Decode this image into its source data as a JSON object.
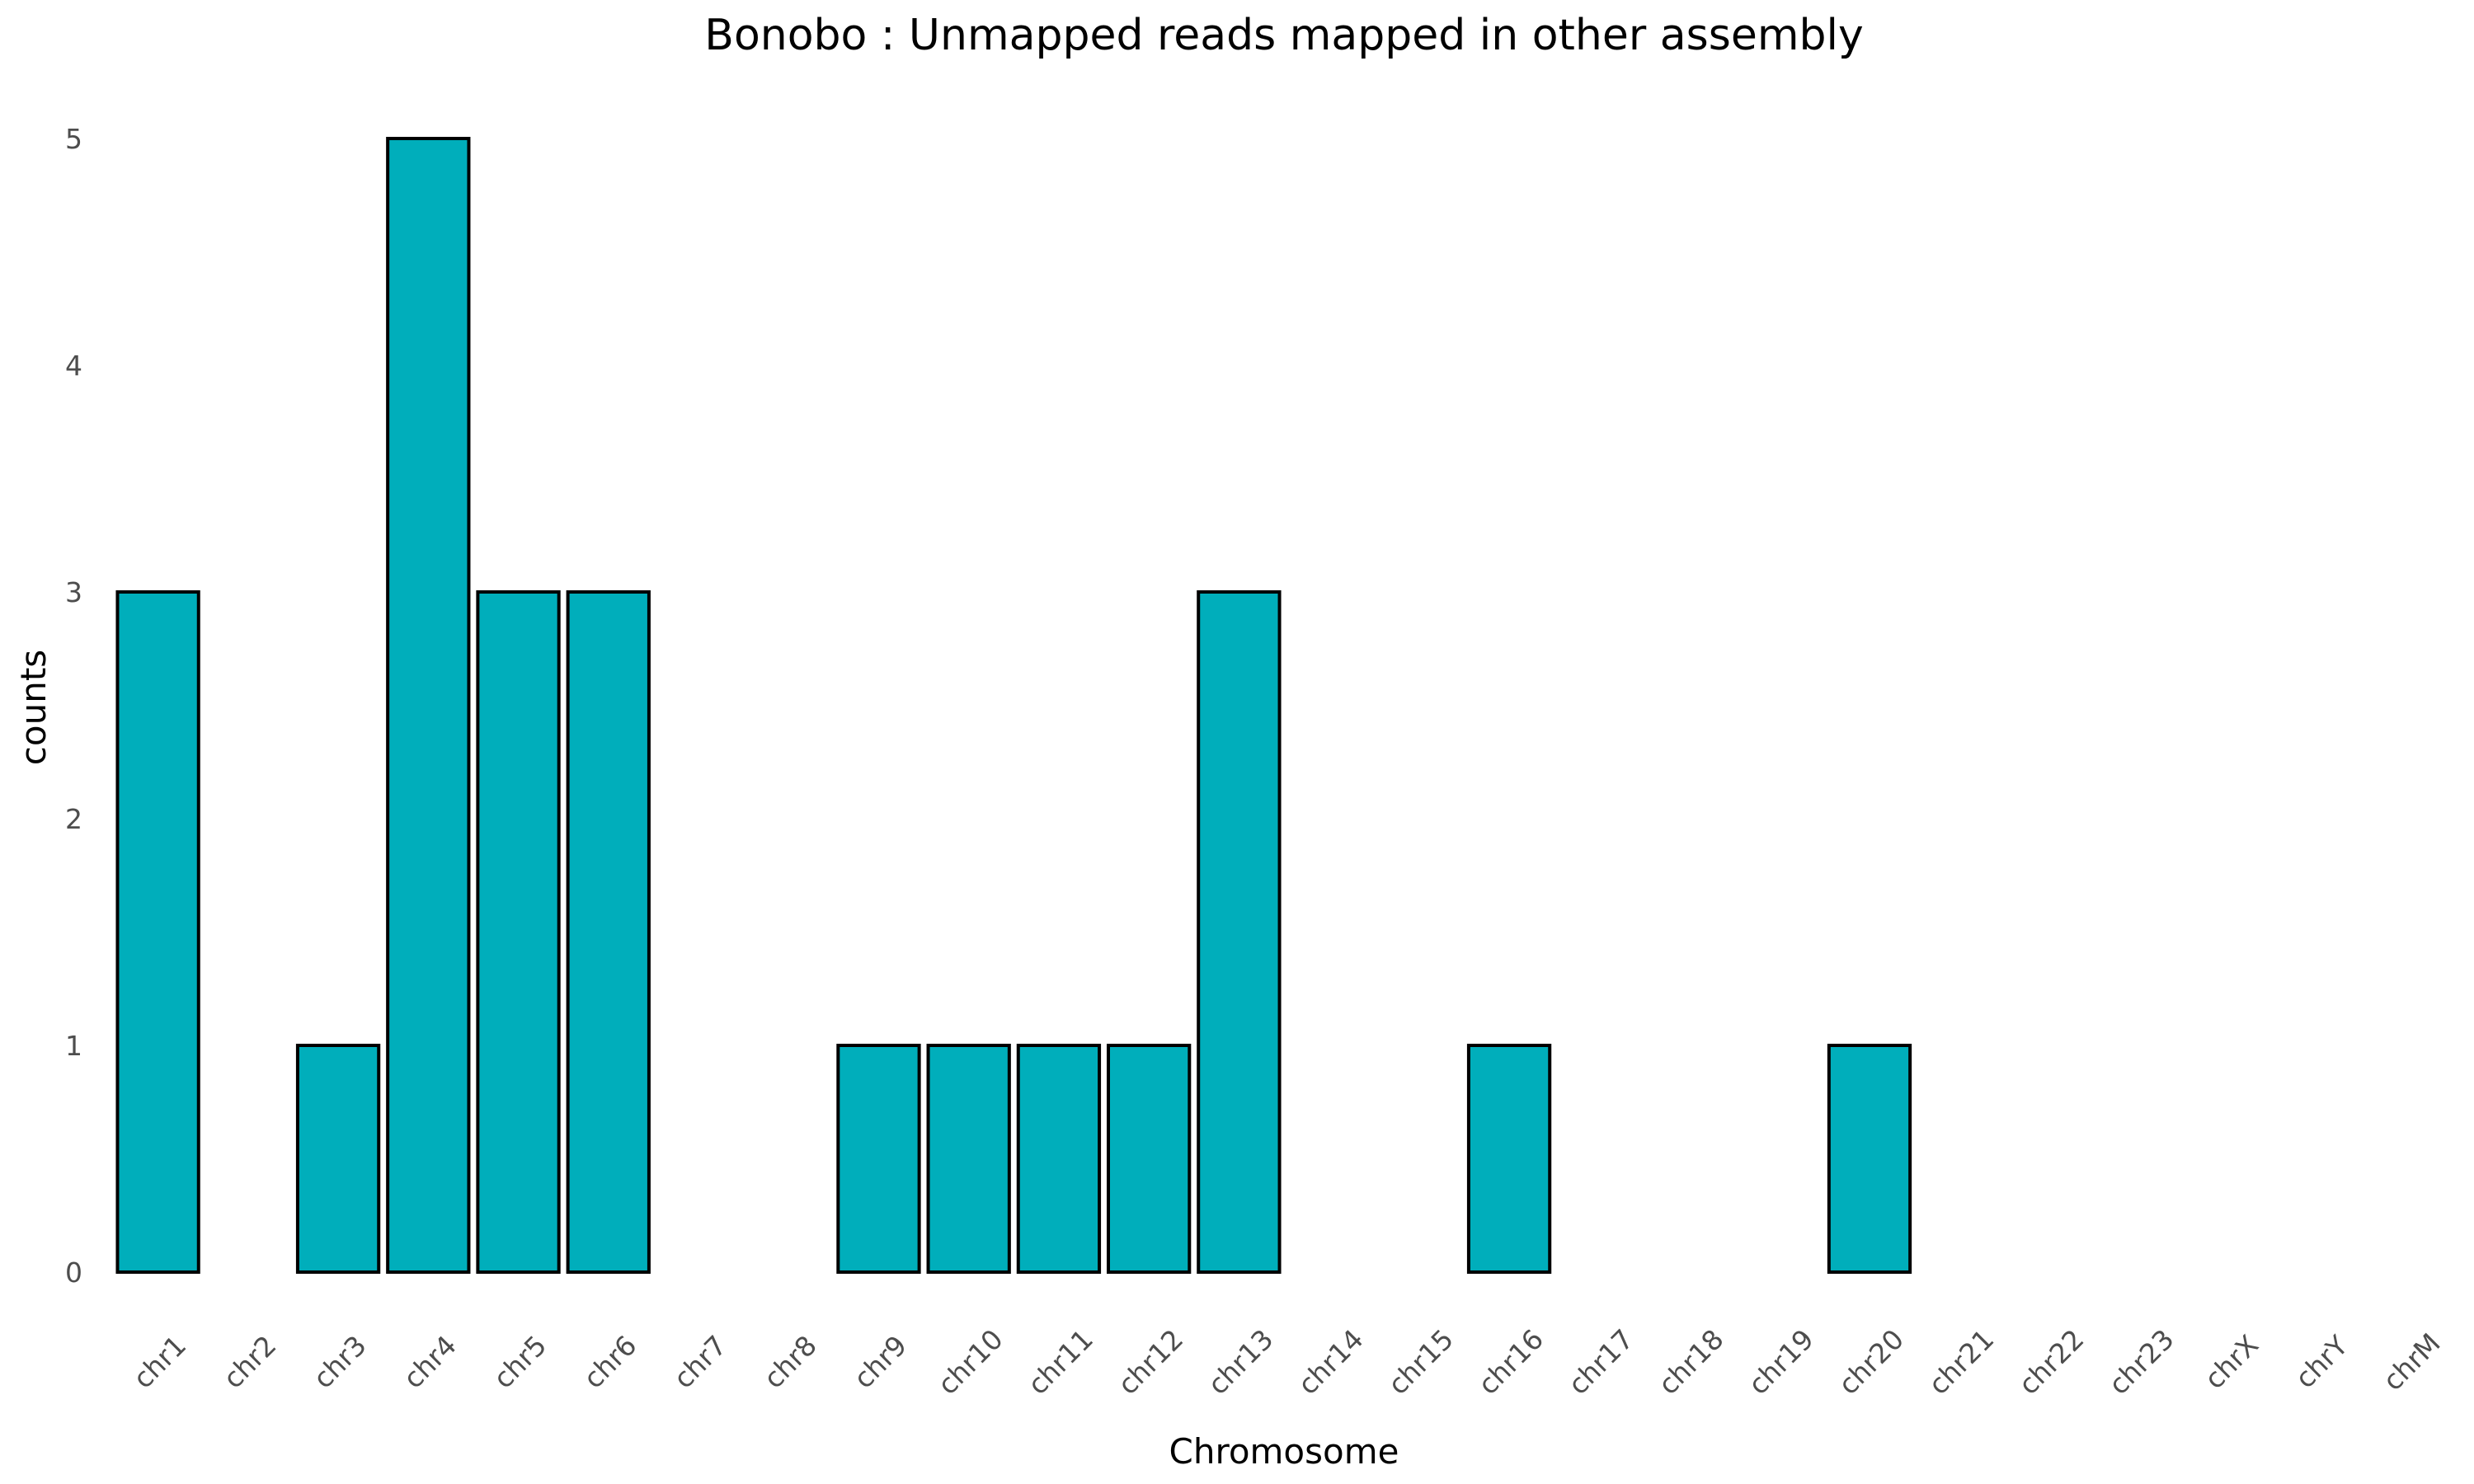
{
  "chart_data": {
    "type": "bar",
    "title": "Bonobo : Unmapped reads mapped in other assembly",
    "xlabel": "Chromosome",
    "ylabel": "counts",
    "categories": [
      "chr1",
      "chr2",
      "chr3",
      "chr4",
      "chr5",
      "chr6",
      "chr7",
      "chr8",
      "chr9",
      "chr10",
      "chr11",
      "chr12",
      "chr13",
      "chr14",
      "chr15",
      "chr16",
      "chr17",
      "chr18",
      "chr19",
      "chr20",
      "chr21",
      "chr22",
      "chr23",
      "chrX",
      "chrY",
      "chrM"
    ],
    "values": [
      3,
      0,
      1,
      5,
      3,
      3,
      0,
      0,
      1,
      1,
      1,
      1,
      3,
      0,
      0,
      1,
      0,
      0,
      0,
      1,
      0,
      0,
      0,
      0,
      0,
      0
    ],
    "ylim": [
      0,
      5
    ],
    "yticks": [
      0,
      1,
      2,
      3,
      4,
      5
    ],
    "grid": false,
    "legend": "none",
    "bar_color": "#00aebb",
    "bar_edge_color": "#000000"
  }
}
